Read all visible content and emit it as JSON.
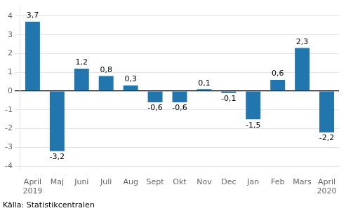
{
  "chart_data": {
    "type": "bar",
    "categories": [
      "April\n2019",
      "Maj",
      "Juni",
      "Juli",
      "Aug",
      "Sept",
      "Okt",
      "Nov",
      "Dec",
      "Jan",
      "Feb",
      "Mars",
      "April\n2020"
    ],
    "values": [
      3.7,
      -3.2,
      1.2,
      0.8,
      0.3,
      -0.6,
      -0.6,
      0.1,
      -0.1,
      -1.5,
      0.6,
      2.3,
      -2.2
    ],
    "value_labels": [
      "3,7",
      "-3,2",
      "1,2",
      "0,8",
      "0,3",
      "-0,6",
      "-0,6",
      "0,1",
      "-0,1",
      "-1,5",
      "0,6",
      "2,3",
      "-2,2"
    ],
    "data_labels": true,
    "color": "#2176ae",
    "ylim": [
      -4.2,
      4.5
    ],
    "yticks": [
      -4,
      -3,
      -2,
      -1,
      0,
      1,
      2,
      3,
      4
    ],
    "grid": true,
    "annotations": [
      "Källa: Statistikcentralen"
    ]
  }
}
